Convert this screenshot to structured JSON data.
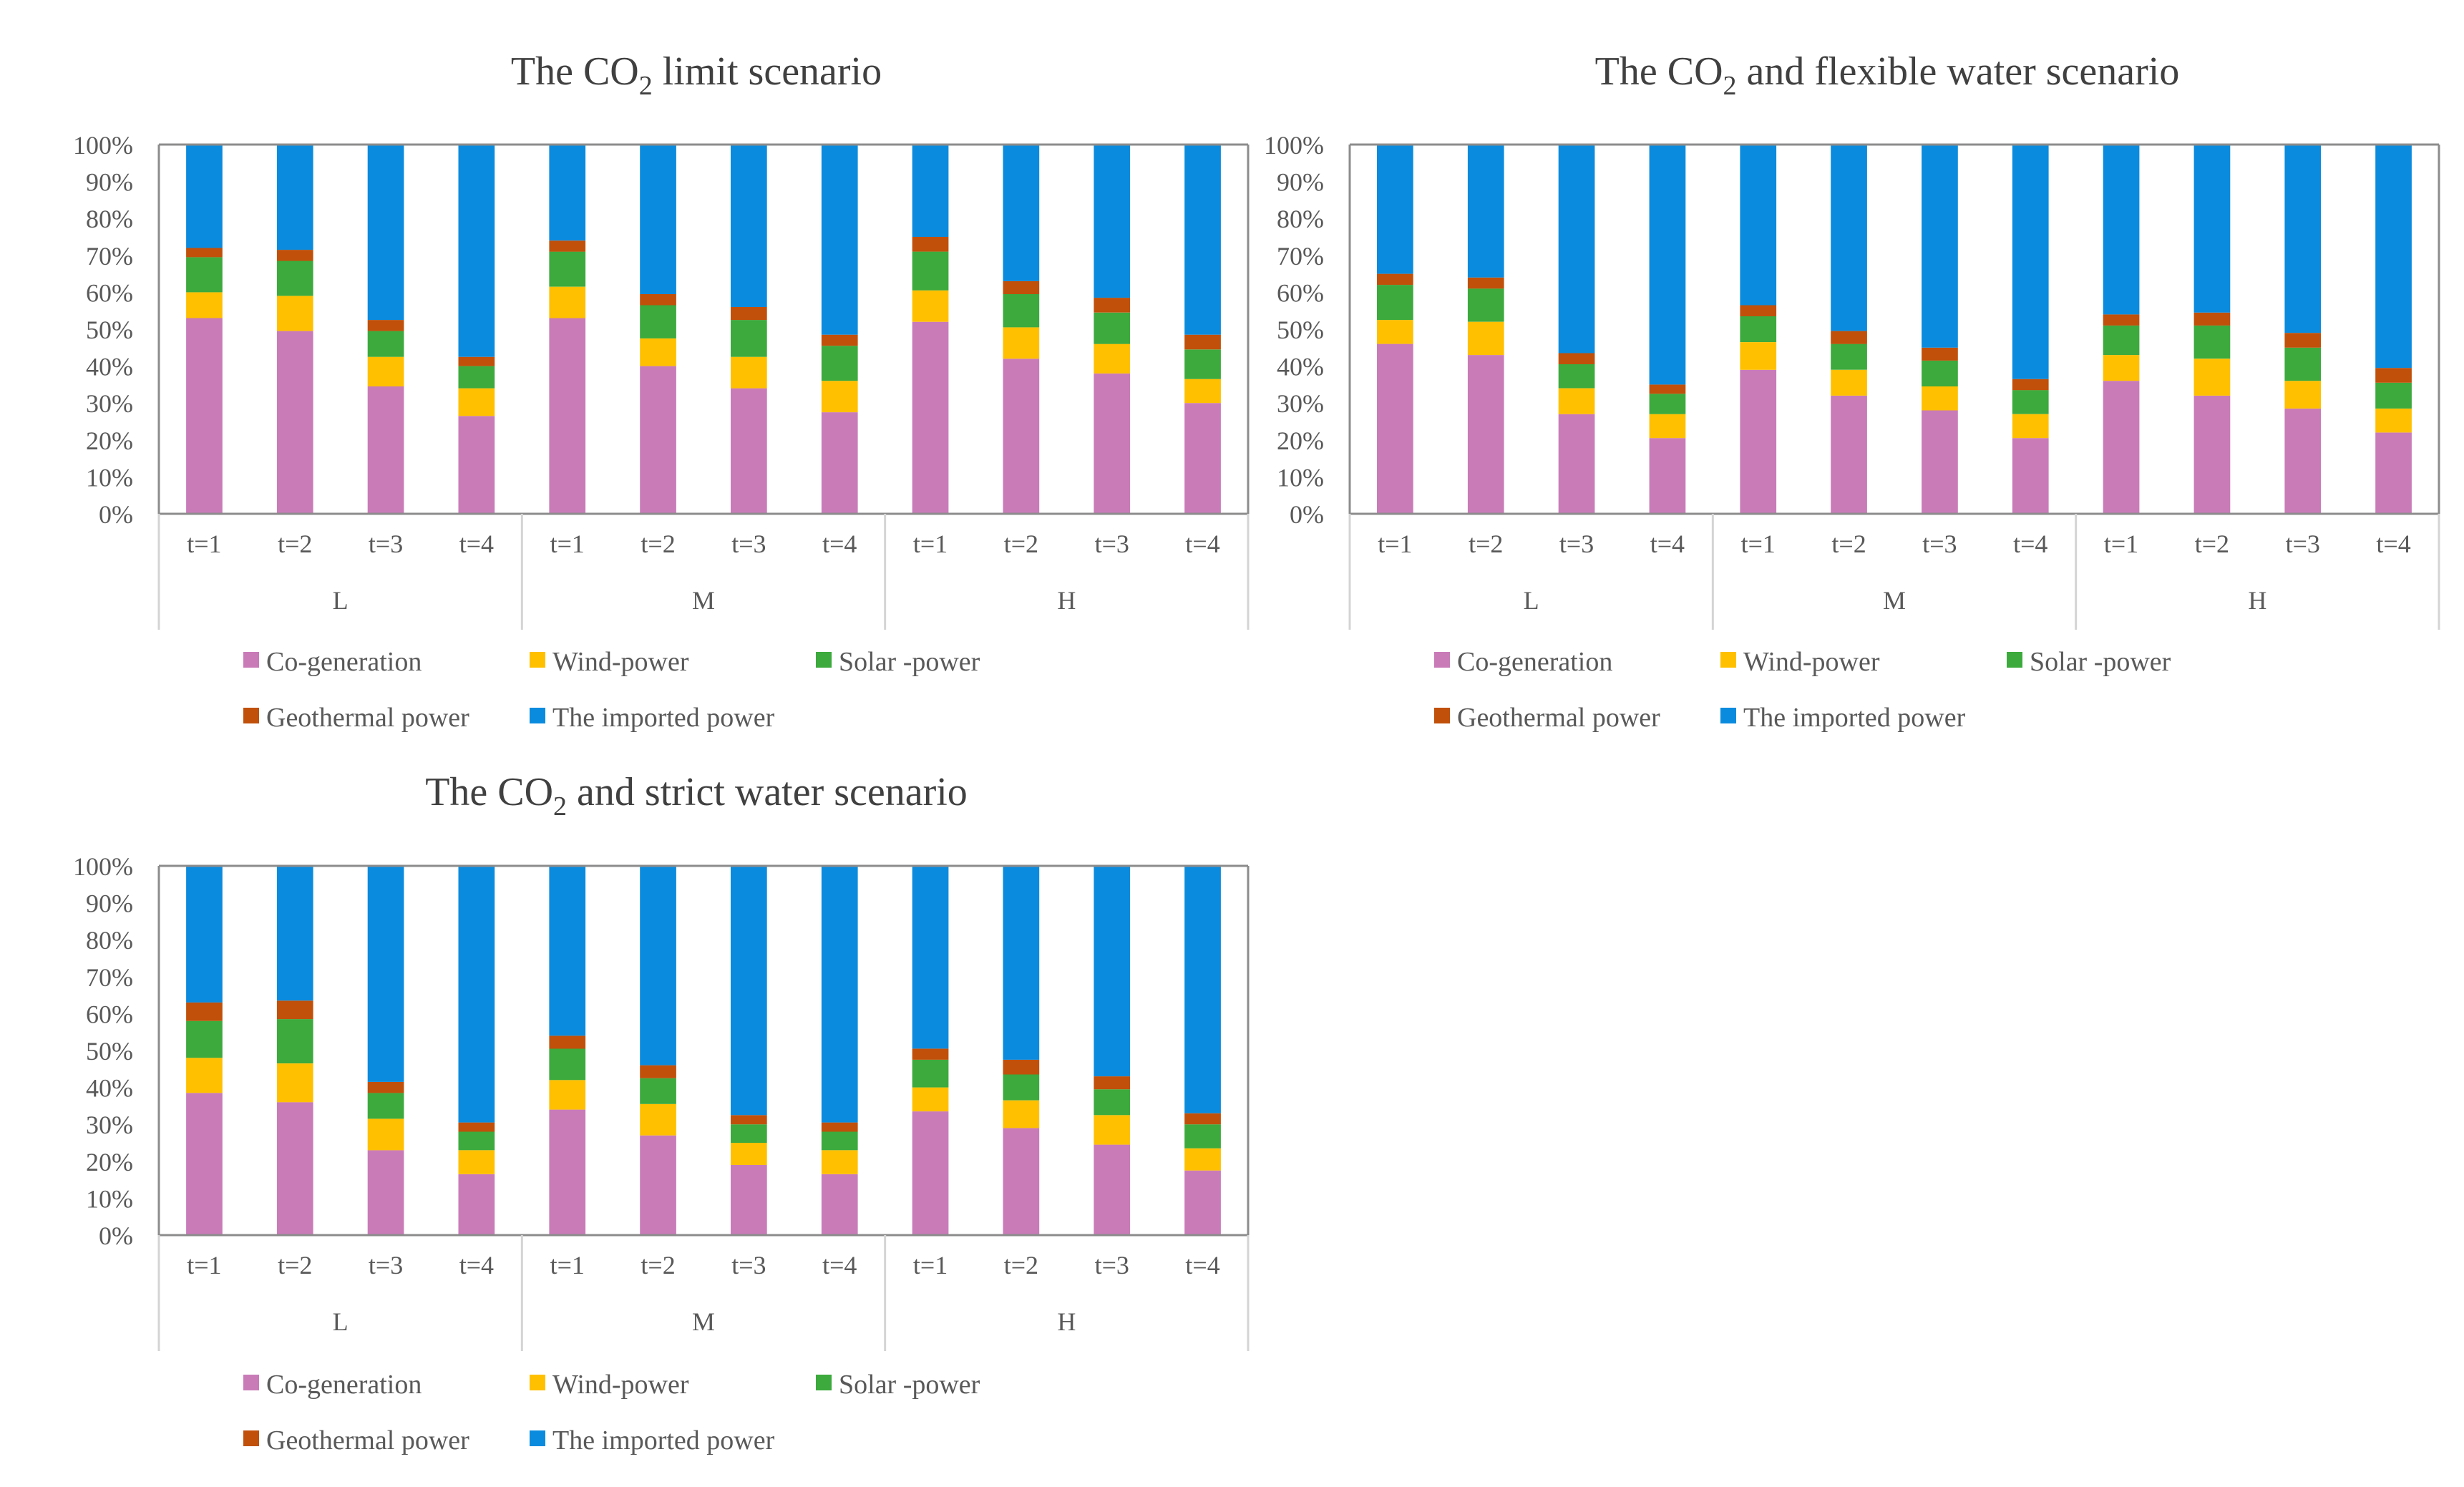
{
  "legend": {
    "series": [
      {
        "name": "Co-generation",
        "color": "#C97BB8"
      },
      {
        "name": "Wind-power",
        "color": "#FFC000"
      },
      {
        "name": "Solar -power",
        "color": "#3CAA3C"
      },
      {
        "name": "Geothermal power",
        "color": "#C0500A"
      },
      {
        "name": "The imported power",
        "color": "#0A8BDE"
      }
    ]
  },
  "chart_data": [
    {
      "type": "bar",
      "stacked": true,
      "title_prefix": "The CO",
      "title_subscript": "2",
      "title_suffix": " limit scenario",
      "categories": [
        "t=1",
        "t=2",
        "t=3",
        "t=4",
        "t=1",
        "t=2",
        "t=3",
        "t=4",
        "t=1",
        "t=2",
        "t=3",
        "t=4"
      ],
      "groups": [
        "L",
        "M",
        "H"
      ],
      "y_ticks": [
        "0%",
        "10%",
        "20%",
        "30%",
        "40%",
        "50%",
        "60%",
        "70%",
        "80%",
        "90%",
        "100%"
      ],
      "ylim": [
        0,
        100
      ],
      "series": [
        {
          "name": "Co-generation",
          "values": [
            53,
            49.5,
            34.5,
            26.5,
            53,
            40,
            34,
            27.5,
            52,
            42,
            38,
            30
          ]
        },
        {
          "name": "Wind-power",
          "values": [
            7,
            9.5,
            8,
            7.5,
            8.5,
            7.5,
            8.5,
            8.5,
            8.5,
            8.5,
            8,
            6.5
          ]
        },
        {
          "name": "Solar -power",
          "values": [
            9.5,
            9.5,
            7,
            6,
            9.5,
            9,
            10,
            9.5,
            10.5,
            9,
            8.5,
            8
          ]
        },
        {
          "name": "Geothermal power",
          "values": [
            2.5,
            3,
            3,
            2.5,
            3,
            3,
            3.5,
            3,
            4,
            3.5,
            4,
            4
          ]
        },
        {
          "name": "The imported power",
          "values": [
            28,
            28.5,
            47.5,
            57.5,
            26,
            40.5,
            44,
            51.5,
            25,
            37,
            41.5,
            51.5
          ]
        }
      ]
    },
    {
      "type": "bar",
      "stacked": true,
      "title_prefix": "The CO",
      "title_subscript": "2",
      "title_suffix": " and flexible water scenario",
      "categories": [
        "t=1",
        "t=2",
        "t=3",
        "t=4",
        "t=1",
        "t=2",
        "t=3",
        "t=4",
        "t=1",
        "t=2",
        "t=3",
        "t=4"
      ],
      "groups": [
        "L",
        "M",
        "H"
      ],
      "y_ticks": [
        "0%",
        "10%",
        "20%",
        "30%",
        "40%",
        "50%",
        "60%",
        "70%",
        "80%",
        "90%",
        "100%"
      ],
      "ylim": [
        0,
        100
      ],
      "series": [
        {
          "name": "Co-generation",
          "values": [
            46,
            43,
            27,
            20.5,
            39,
            32,
            28,
            20.5,
            36,
            32,
            28.5,
            22
          ]
        },
        {
          "name": "Wind-power",
          "values": [
            6.5,
            9,
            7,
            6.5,
            7.5,
            7,
            6.5,
            6.5,
            7,
            10,
            7.5,
            6.5
          ]
        },
        {
          "name": "Solar -power",
          "values": [
            9.5,
            9,
            6.5,
            5.5,
            7,
            7,
            7,
            6.5,
            8,
            9,
            9,
            7
          ]
        },
        {
          "name": "Geothermal power",
          "values": [
            3,
            3,
            3,
            2.5,
            3,
            3.5,
            3.5,
            3,
            3,
            3.5,
            4,
            4
          ]
        },
        {
          "name": "The imported power",
          "values": [
            35,
            36,
            56.5,
            65,
            43.5,
            50.5,
            55,
            63.5,
            46,
            45.5,
            51,
            60.5
          ]
        }
      ]
    },
    {
      "type": "bar",
      "stacked": true,
      "title_prefix": "The CO",
      "title_subscript": "2",
      "title_suffix": " and strict water scenario",
      "categories": [
        "t=1",
        "t=2",
        "t=3",
        "t=4",
        "t=1",
        "t=2",
        "t=3",
        "t=4",
        "t=1",
        "t=2",
        "t=3",
        "t=4"
      ],
      "groups": [
        "L",
        "M",
        "H"
      ],
      "y_ticks": [
        "0%",
        "10%",
        "20%",
        "30%",
        "40%",
        "50%",
        "60%",
        "70%",
        "80%",
        "90%",
        "100%"
      ],
      "ylim": [
        0,
        100
      ],
      "series": [
        {
          "name": "Co-generation",
          "values": [
            38.5,
            36,
            23,
            16.5,
            34,
            27,
            19,
            16.5,
            33.5,
            29,
            24.5,
            17.5
          ]
        },
        {
          "name": "Wind-power",
          "values": [
            9.5,
            10.5,
            8.5,
            6.5,
            8,
            8.5,
            6,
            6.5,
            6.5,
            7.5,
            8,
            6
          ]
        },
        {
          "name": "Solar -power",
          "values": [
            10,
            12,
            7,
            5,
            8.5,
            7,
            5,
            5,
            7.5,
            7,
            7,
            6.5
          ]
        },
        {
          "name": "Geothermal power",
          "values": [
            5,
            5,
            3,
            2.5,
            3.5,
            3.5,
            2.5,
            2.5,
            3,
            4,
            3.5,
            3
          ]
        },
        {
          "name": "The imported power",
          "values": [
            37,
            36.5,
            58.5,
            69.5,
            46,
            54,
            67.5,
            69.5,
            49.5,
            52.5,
            57,
            67
          ]
        }
      ]
    }
  ]
}
